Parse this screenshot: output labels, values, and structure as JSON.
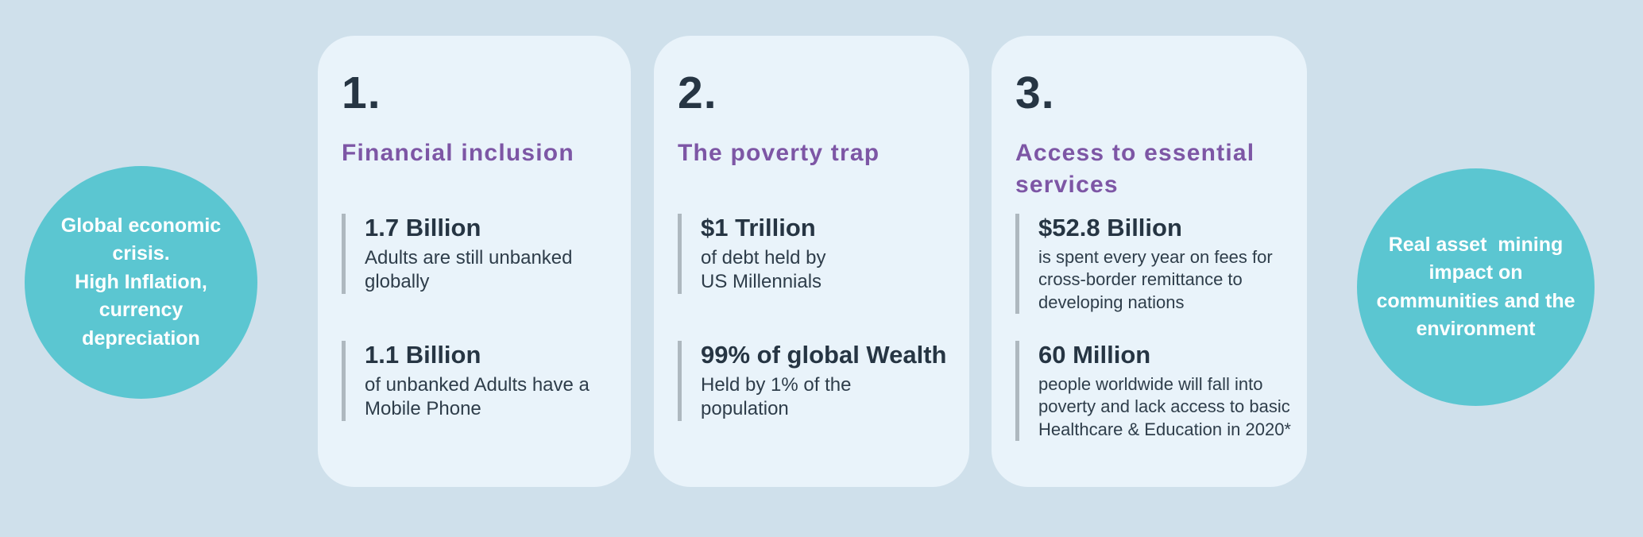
{
  "colors": {
    "background": "#cfe0eb",
    "card_background": "#e9f3fa",
    "circle_teal": "#5bc6d1",
    "heading_purple": "#7d56a5",
    "text_dark_navy": "#263543",
    "stat_bar_gray": "#aeb8bf",
    "circle_text_white": "#ffffff"
  },
  "left_circle": {
    "text": "Global economic\ncrisis.\nHigh Inflation,\ncurrency\ndepreciation"
  },
  "right_circle": {
    "text": "Real asset  mining\nimpact on\ncommunities and the\nenvironment"
  },
  "cards": [
    {
      "number": "1.",
      "heading": "Financial inclusion",
      "stats": [
        {
          "value": "1.7 Billion",
          "description": "Adults are still unbanked\nglobally"
        },
        {
          "value": "1.1 Billion",
          "description": "of unbanked Adults have a\nMobile Phone"
        }
      ]
    },
    {
      "number": "2.",
      "heading": "The poverty trap",
      "stats": [
        {
          "value": "$1 Trillion",
          "description": "of debt held by\nUS Millennials"
        },
        {
          "value": "99% of global Wealth",
          "description": "Held by 1% of the\npopulation"
        }
      ]
    },
    {
      "number": "3.",
      "heading": "Access to essential\nservices",
      "stats": [
        {
          "value": "$52.8 Billion",
          "description": "is spent every year on fees for\ncross-border remittance to\ndeveloping nations"
        },
        {
          "value": "60 Million",
          "description": "people worldwide will fall into\npoverty and lack access to basic\nHealthcare & Education in 2020*"
        }
      ]
    }
  ]
}
